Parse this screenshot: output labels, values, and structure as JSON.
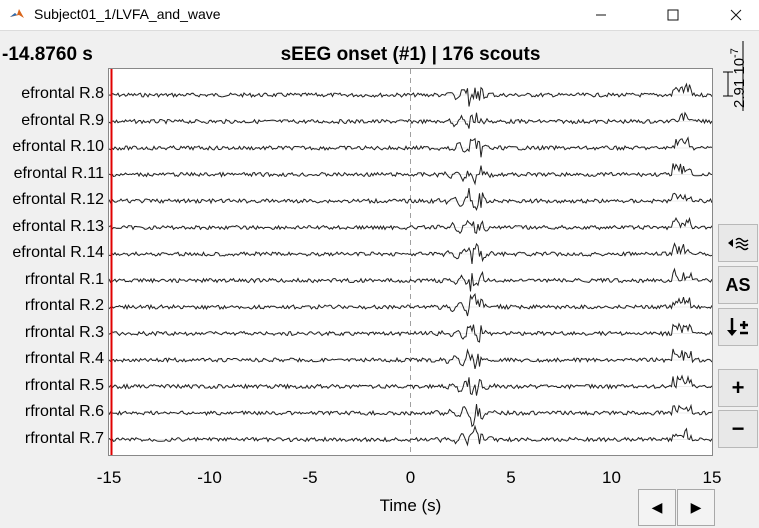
{
  "window": {
    "title": "Subject01_1/LVFA_and_wave"
  },
  "header": {
    "time": "-14.8760 s",
    "title": "sEEG onset (#1) | 176 scouts"
  },
  "scale": {
    "label": "2.91",
    "exponent": "10",
    "power": "-7"
  },
  "channels": [
    "efrontal R.8",
    "efrontal R.9",
    "efrontal R.10",
    "efrontal R.11",
    "efrontal R.12",
    "efrontal R.13",
    "efrontal R.14",
    "rfrontal R.1",
    "rfrontal R.2",
    "rfrontal R.3",
    "rfrontal R.4",
    "rfrontal R.5",
    "rfrontal R.6",
    "rfrontal R.7"
  ],
  "axis": {
    "xlabel": "Time (s)",
    "ticks": [
      "-15",
      "-10",
      "-5",
      "0",
      "5",
      "10",
      "15"
    ],
    "range": [
      -15,
      15
    ],
    "cursor_time": -14.876,
    "event_time": 0
  },
  "sidebar": {
    "as_label": "AS",
    "zoom_in": "+",
    "zoom_out": "−"
  },
  "nav": {
    "prev": "◀",
    "next": "▶"
  },
  "colors": {
    "cursor": "#e00000",
    "trace": "#202020",
    "event": "#a0a0a0"
  }
}
